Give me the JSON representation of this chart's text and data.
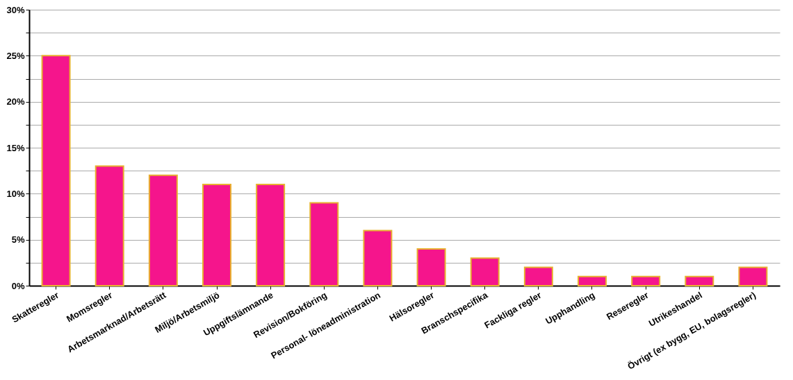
{
  "chart_data": {
    "type": "bar",
    "categories": [
      "Skatteregler",
      "Momsregler",
      "Arbetsmarknad/Arbetsrätt",
      "Miljö/Arbetsmiljö",
      "Uppgiftslämnande",
      "Revision/Bokföring",
      "Personal- löneadministration",
      "Hälsoregler",
      "Branschspecifika",
      "Fackliga regler",
      "Upphandling",
      "Reseregler",
      "Utrikeshandel",
      "Övrigt (ex bygg, EU, bolagsregler)"
    ],
    "values": [
      25,
      13,
      12,
      11,
      11,
      9,
      6,
      4,
      3,
      2,
      1,
      1,
      1,
      2
    ],
    "color": "#f5158c",
    "ylim": [
      0,
      30
    ],
    "yticks": [
      {
        "value": 0,
        "label": "0%"
      },
      {
        "value": 2.5,
        "label": null
      },
      {
        "value": 5,
        "label": "5%"
      },
      {
        "value": 7.5,
        "label": null
      },
      {
        "value": 10,
        "label": "10%"
      },
      {
        "value": 12.5,
        "label": null
      },
      {
        "value": 15,
        "label": "15%"
      },
      {
        "value": 17.5,
        "label": null
      },
      {
        "value": 20,
        "label": "20%"
      },
      {
        "value": 22.5,
        "label": null
      },
      {
        "value": 25,
        "label": "25%"
      },
      {
        "value": 27.5,
        "label": null
      },
      {
        "value": 30,
        "label": "30%"
      }
    ],
    "grid": "y"
  }
}
